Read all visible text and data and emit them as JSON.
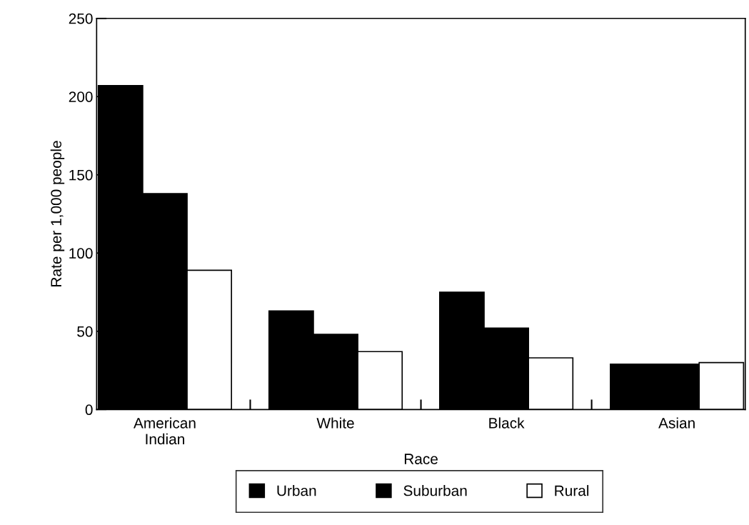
{
  "chart_data": {
    "type": "bar",
    "xlabel": "Race",
    "ylabel": "Rate per 1,000 people",
    "categories": [
      "American\nIndian",
      "White",
      "Black",
      "Asian"
    ],
    "series": [
      {
        "name": "Urban",
        "color": "#000000",
        "values": [
          207,
          63,
          75,
          29
        ]
      },
      {
        "name": "Suburban",
        "color": "#000000",
        "values": [
          138,
          48,
          52,
          29
        ]
      },
      {
        "name": "Rural",
        "color": "#ffffff",
        "values": [
          89,
          37,
          33,
          30
        ]
      }
    ],
    "ylim": [
      0,
      250
    ],
    "yticks": [
      0,
      50,
      100,
      150,
      200,
      250
    ],
    "grid": false,
    "legend": "bottom"
  }
}
